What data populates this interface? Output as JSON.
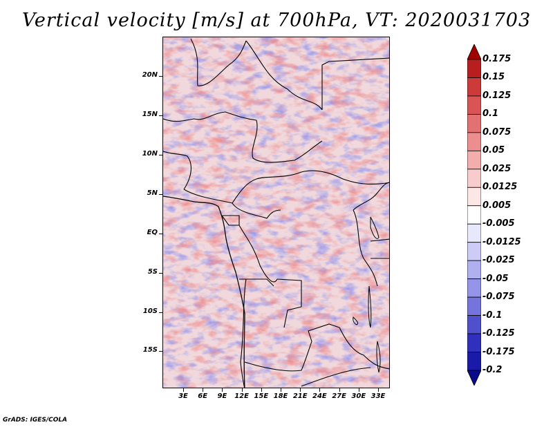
{
  "title": "Vertical velocity [m/s] at 700hPa, VT: 2020031703",
  "map": {
    "lat_labels": [
      "20N",
      "15N",
      "10N",
      "5N",
      "EQ",
      "5S",
      "10S",
      "15S"
    ],
    "lon_labels": [
      "3E",
      "6E",
      "9E",
      "12E",
      "15E",
      "18E",
      "21E",
      "24E",
      "27E",
      "30E",
      "33E"
    ]
  },
  "colorbar": {
    "levels": [
      "0.175",
      "0.15",
      "0.125",
      "0.1",
      "0.075",
      "0.05",
      "0.025",
      "0.0125",
      "0.005",
      "-0.005",
      "-0.0125",
      "-0.025",
      "-0.05",
      "-0.075",
      "-0.1",
      "-0.125",
      "-0.175",
      "-0.2"
    ],
    "colors": [
      "#a00000",
      "#b81e1e",
      "#cc3a3a",
      "#d95555",
      "#e37171",
      "#ec8e8e",
      "#f3adad",
      "#f8cccc",
      "#fce6e6",
      "#ffffff",
      "#e8e8fc",
      "#ccccf6",
      "#b0b0f0",
      "#9494e8",
      "#7474dc",
      "#5050cc",
      "#3030bc",
      "#1a1aa8",
      "#0a0a8c"
    ]
  },
  "credit": "GrADS: IGES/COLA"
}
